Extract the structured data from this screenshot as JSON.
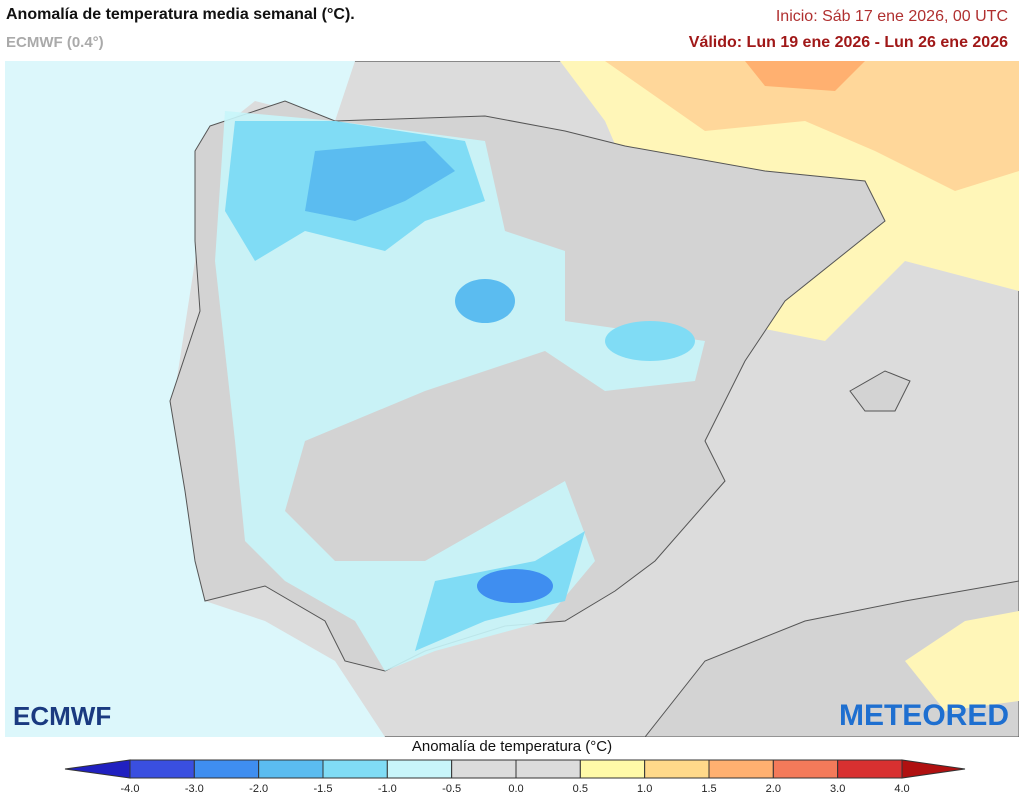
{
  "header": {
    "title": "Anomalía de temperatura media semanal (°C).",
    "model": "ECMWF (0.4°)",
    "init": "Inicio: Sáb 17 ene 2026, 00 UTC",
    "valid": "Válido: Lun 19 ene 2026 - Lun 26 ene 2026"
  },
  "map": {
    "logo_left": "ECMWF",
    "logo_right": "METEORED"
  },
  "legend": {
    "title": "Anomalía de temperatura (°C)",
    "ticks": [
      "-4.0",
      "-3.0",
      "-2.0",
      "-1.5",
      "-1.0",
      "-0.5",
      "0.0",
      "0.5",
      "1.0",
      "1.5",
      "2.0",
      "3.0",
      "4.0"
    ],
    "colors": [
      "#2020c0",
      "#3a4fe0",
      "#3f8ef0",
      "#5bbcf0",
      "#80dcf5",
      "#c8f5fa",
      "#dcdcdc",
      "#dcdcdc",
      "#fffaa8",
      "#ffd98a",
      "#ffb070",
      "#f47a5a",
      "#d83030",
      "#b01010"
    ]
  }
}
